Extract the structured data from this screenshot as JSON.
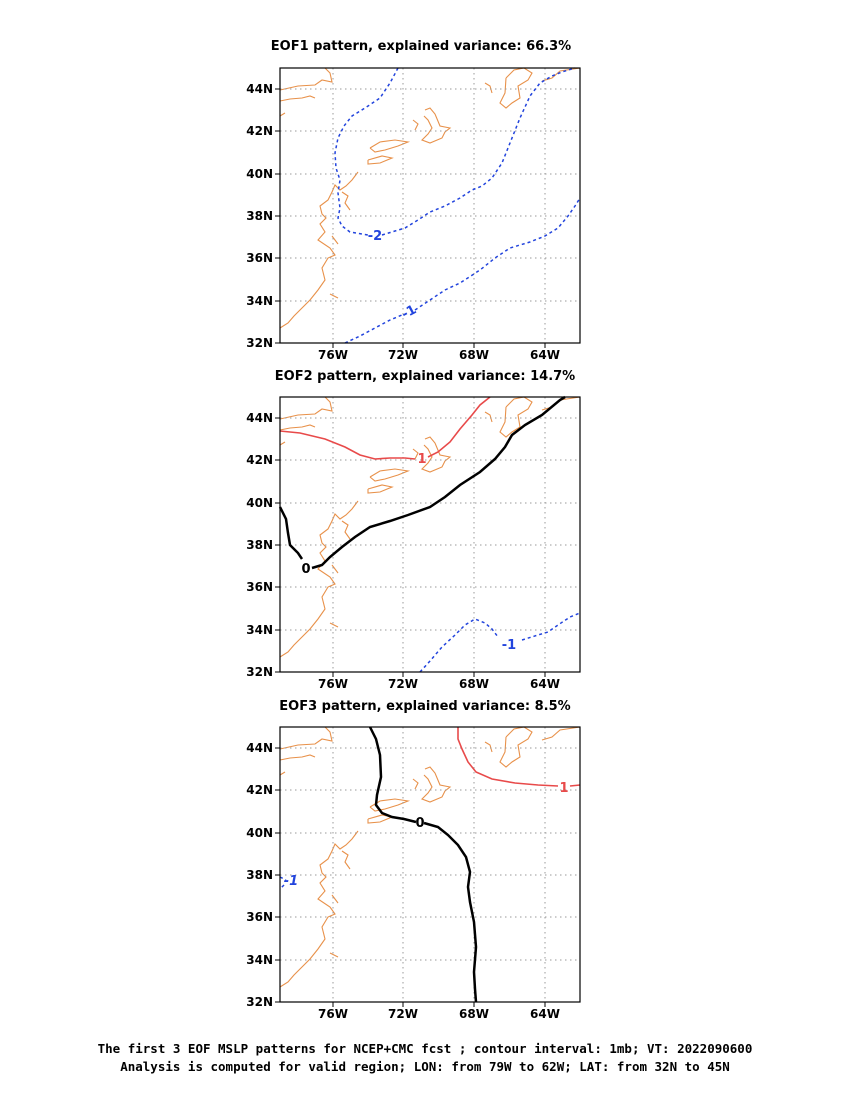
{
  "figure": {
    "panels": [
      {
        "title": "EOF1 pattern, explained variance: 66.3%",
        "contours": [
          {
            "value": -2,
            "label": "-2"
          },
          {
            "value": -1,
            "label": "-1"
          }
        ]
      },
      {
        "title": "EOF2 pattern, explained variance: 14.7%",
        "contours": [
          {
            "value": 1,
            "label": "1"
          },
          {
            "value": 0,
            "label": "0"
          },
          {
            "value": -1,
            "label": "-1"
          }
        ]
      },
      {
        "title": "EOF3 pattern, explained variance: 8.5%",
        "contours": [
          {
            "value": 1,
            "label": "1"
          },
          {
            "value": 0,
            "label": "0"
          },
          {
            "value": -1,
            "label": "-1"
          }
        ]
      }
    ],
    "y_ticks": [
      "44N",
      "42N",
      "40N",
      "38N",
      "36N",
      "34N",
      "32N"
    ],
    "x_ticks": [
      "76W",
      "72W",
      "68W",
      "64W"
    ],
    "caption_line1": "The first 3 EOF MSLP patterns for NCEP+CMC fcst ; contour interval: 1mb; VT: 2022090600",
    "caption_line2": "Analysis is computed for valid region; LON: from 79W to 62W; LAT: from 32N to 45N",
    "colors": {
      "negative_contour": "#2244dd",
      "zero_contour": "#000000",
      "positive_contour": "#e84a4a",
      "coastline": "#e8914a"
    }
  }
}
